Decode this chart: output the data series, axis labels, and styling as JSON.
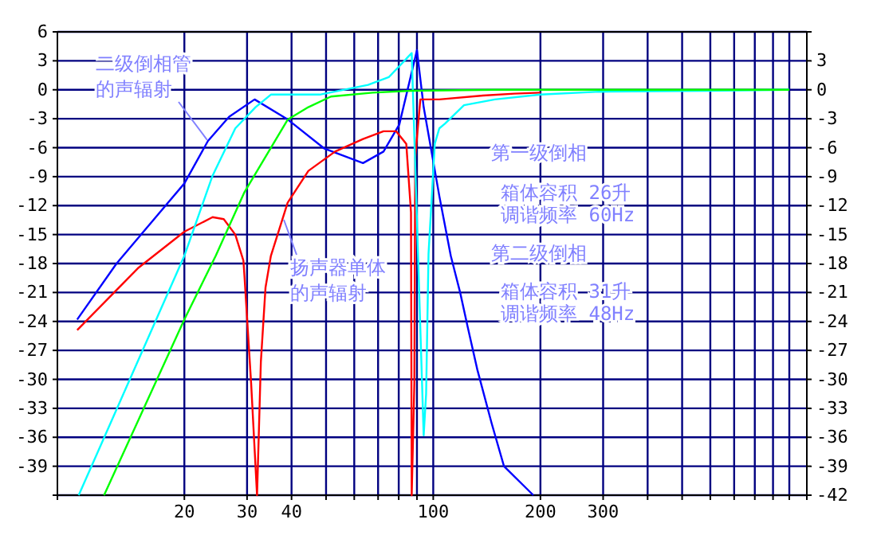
{
  "chart_data": {
    "type": "line",
    "log": "x",
    "grid": true,
    "marker": "none",
    "line_style": "solid",
    "xlim": [
      8.8,
      1120
    ],
    "xticks": [
      20,
      30,
      40,
      {
        "value": 50,
        "label": null
      },
      {
        "value": 60,
        "label": null
      },
      {
        "value": 70,
        "label": null
      },
      {
        "value": 80,
        "label": null
      },
      {
        "value": 90,
        "label": null
      },
      100,
      200,
      300,
      {
        "value": 400,
        "label": null
      },
      {
        "value": 500,
        "label": null
      },
      {
        "value": 600,
        "label": null
      },
      {
        "value": 700,
        "label": null
      },
      {
        "value": 800,
        "label": null
      },
      {
        "value": 900,
        "label": null
      },
      {
        "value": 1000,
        "label": null
      }
    ],
    "ylim": [
      -42,
      6
    ],
    "yticks": [
      6,
      3,
      0,
      -3,
      -6,
      -9,
      -12,
      -15,
      -18,
      -21,
      -24,
      -27,
      -30,
      -33,
      -36,
      -39,
      {
        "value": -42,
        "label": null
      }
    ],
    "y2lim": [
      -42,
      6
    ],
    "y2ticks": [
      {
        "value": 6,
        "label": null
      },
      3,
      0,
      -3,
      -6,
      -9,
      -12,
      -15,
      -18,
      -21,
      -24,
      -27,
      -30,
      -33,
      -36,
      -39,
      -42
    ],
    "series": [
      {
        "color": "#0000ff",
        "x": [
          10,
          12.9,
          20,
          23.3,
          26.7,
          31.5,
          39.1,
          49.5,
          63.5,
          72.5,
          80.3,
          90,
          94,
          104,
          112,
          119,
          125,
          133,
          146,
          158,
          191
        ],
        "values": [
          -23.8,
          -18,
          -9.7,
          -5.3,
          -2.8,
          -1,
          -3.1,
          -6.1,
          -7.6,
          -6.4,
          -3.6,
          4.1,
          -1.8,
          -11,
          -17.2,
          -21,
          -24.6,
          -29,
          -34.6,
          -39,
          -42
        ]
      },
      {
        "color": "#ff0000",
        "x": [
          10,
          14.8,
          20,
          24,
          25.8,
          27.8,
          29.3,
          29.5,
          30.8,
          32,
          32.8,
          33.8,
          35,
          39,
          44.6,
          53,
          63.5,
          72.5,
          78.7,
          84,
          86.6,
          87,
          88.5,
          89,
          92,
          104,
          138,
          169,
          200
        ],
        "values": [
          -24.9,
          -18.5,
          -14.7,
          -13.2,
          -13.4,
          -15,
          -17.7,
          -19.3,
          -30.4,
          -42,
          -28.2,
          -20.5,
          -17.2,
          -11.7,
          -8.4,
          -6.4,
          -5.1,
          -4.3,
          -4.3,
          -5.6,
          -12.7,
          -42,
          -30.4,
          -7,
          -1,
          -1,
          -0.6,
          -0.4,
          -0.3
        ]
      },
      {
        "color": "#00ffff",
        "x": [
          10.1,
          20,
          24,
          27.8,
          31.7,
          35,
          48,
          65.6,
          75,
          87,
          94,
          95.5,
          97,
          101,
          104,
          108,
          122,
          149,
          200,
          293,
          600,
          1000
        ],
        "values": [
          -42,
          -17.2,
          -8.9,
          -4,
          -1.8,
          -0.5,
          -0.5,
          0.5,
          1.3,
          3.8,
          -35.8,
          -31.5,
          -17,
          -5.6,
          -4,
          -3.5,
          -1.6,
          -1,
          -0.5,
          -0.2,
          -0.1,
          0
        ]
      },
      {
        "color": "#00ff00",
        "x": [
          11.9,
          20,
          24.5,
          29.5,
          39,
          44.6,
          51.6,
          67.6,
          87,
          150,
          1000
        ],
        "values": [
          -42,
          -23.8,
          -17.2,
          -10.6,
          -3.1,
          -1.8,
          -0.7,
          -0.3,
          -0.1,
          0,
          0
        ]
      }
    ],
    "annotations": [
      "二级倒相管",
      "的声辐射",
      "扬声器单体",
      "的声辐射",
      "第一级倒相",
      "箱体容积  26升",
      "调谐频率  60Hz",
      "第二级倒相",
      "箱体容积  31升",
      "调谐频率  48Hz"
    ]
  }
}
